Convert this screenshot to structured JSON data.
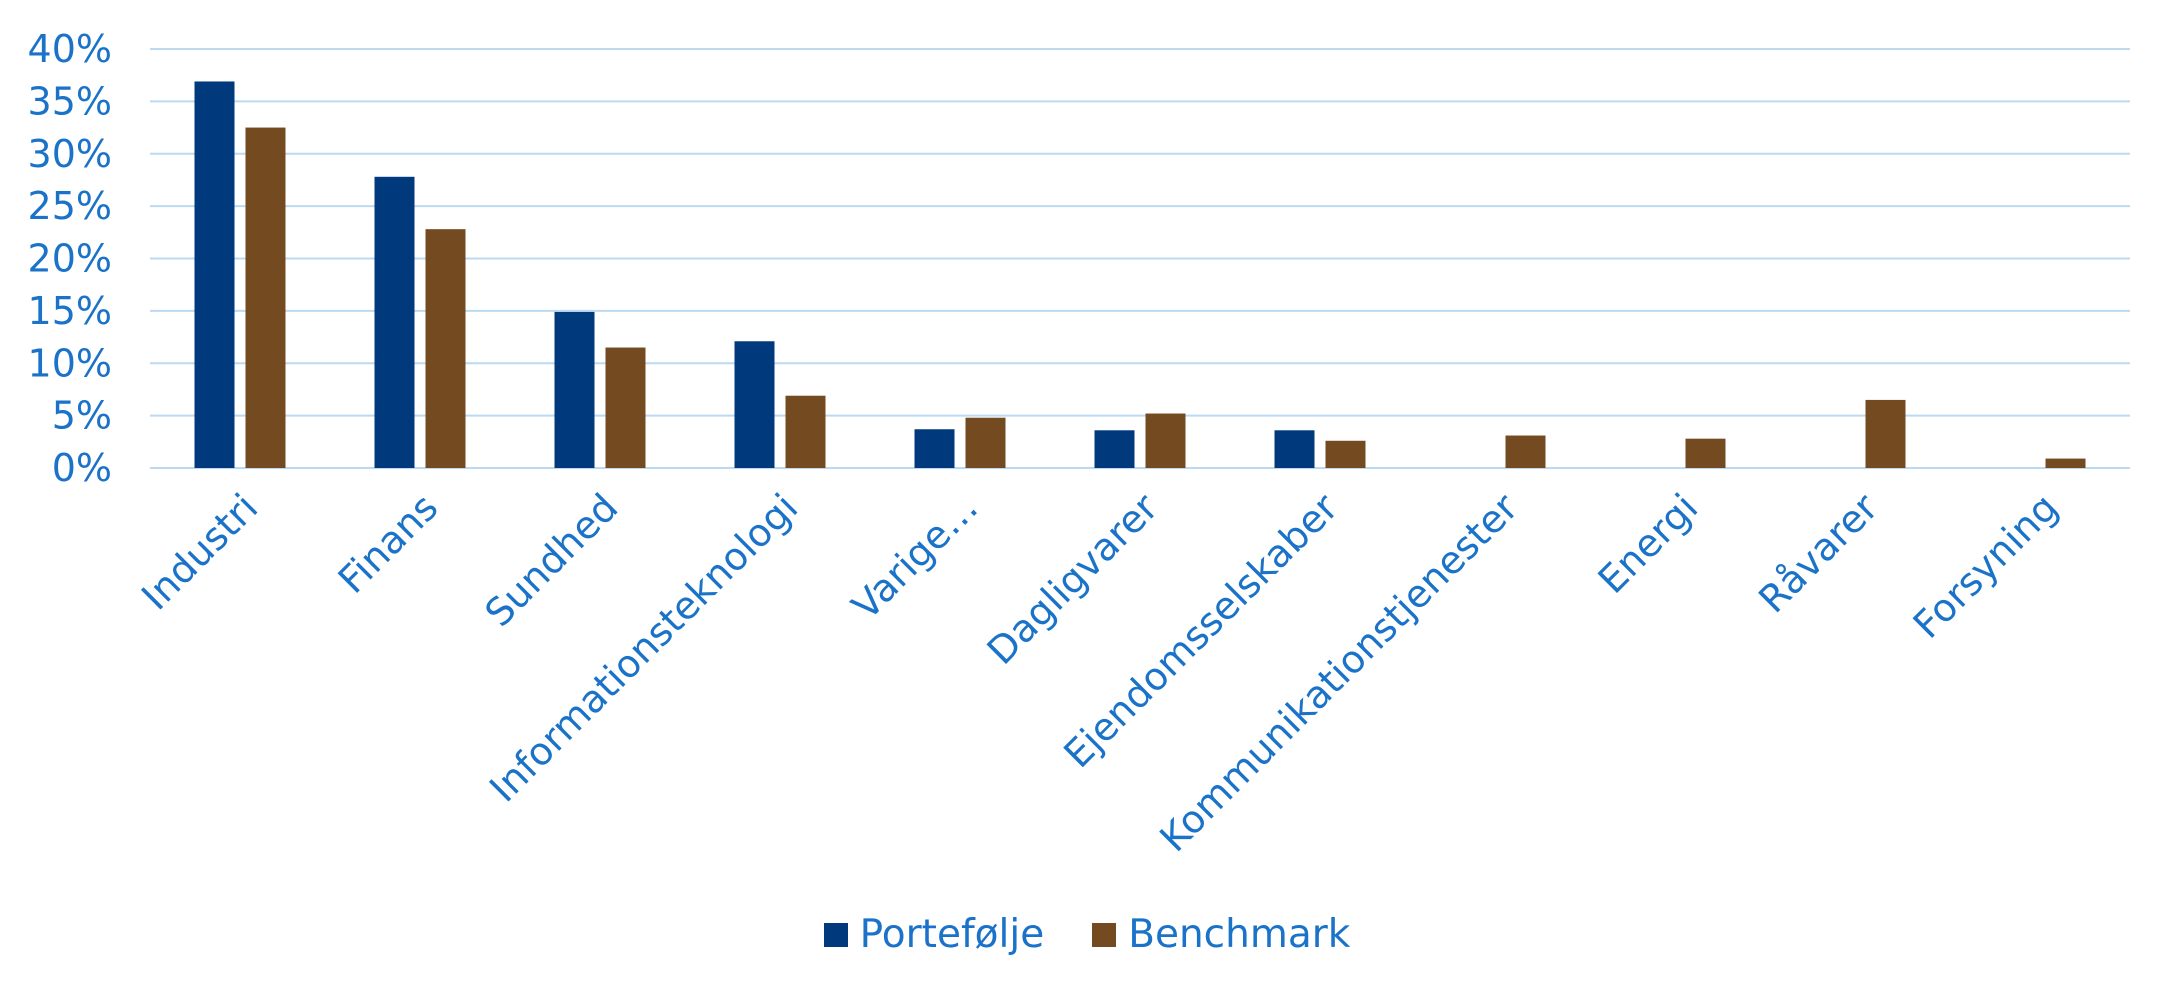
{
  "colors": {
    "axis_text": "#1a73c8",
    "gridline": "#bcd9f2",
    "portfolio": "#003a7d",
    "benchmark": "#744b20"
  },
  "chart_data": {
    "type": "bar",
    "categories": [
      "Industri",
      "Finans",
      "Sundhed",
      "Informationsteknologi",
      "Varige…",
      "Dagligvarer",
      "Ejendomsselskaber",
      "Kommunikationstjenester",
      "Energi",
      "Råvarer",
      "Forsyning"
    ],
    "series": [
      {
        "name": "Portefølje",
        "values": [
          36.9,
          27.8,
          14.9,
          12.1,
          3.7,
          3.6,
          3.6,
          0,
          0,
          0,
          0
        ]
      },
      {
        "name": "Benchmark",
        "values": [
          32.5,
          22.8,
          11.5,
          6.9,
          4.8,
          5.2,
          2.6,
          3.1,
          2.8,
          6.5,
          0.9
        ]
      }
    ],
    "y_ticks": [
      "0%",
      "5%",
      "10%",
      "15%",
      "20%",
      "25%",
      "30%",
      "35%",
      "40%"
    ],
    "ylim": [
      0,
      40
    ],
    "grid": true,
    "legend_position": "bottom"
  },
  "legend": {
    "portfolio_label": "Portefølje",
    "benchmark_label": "Benchmark"
  }
}
